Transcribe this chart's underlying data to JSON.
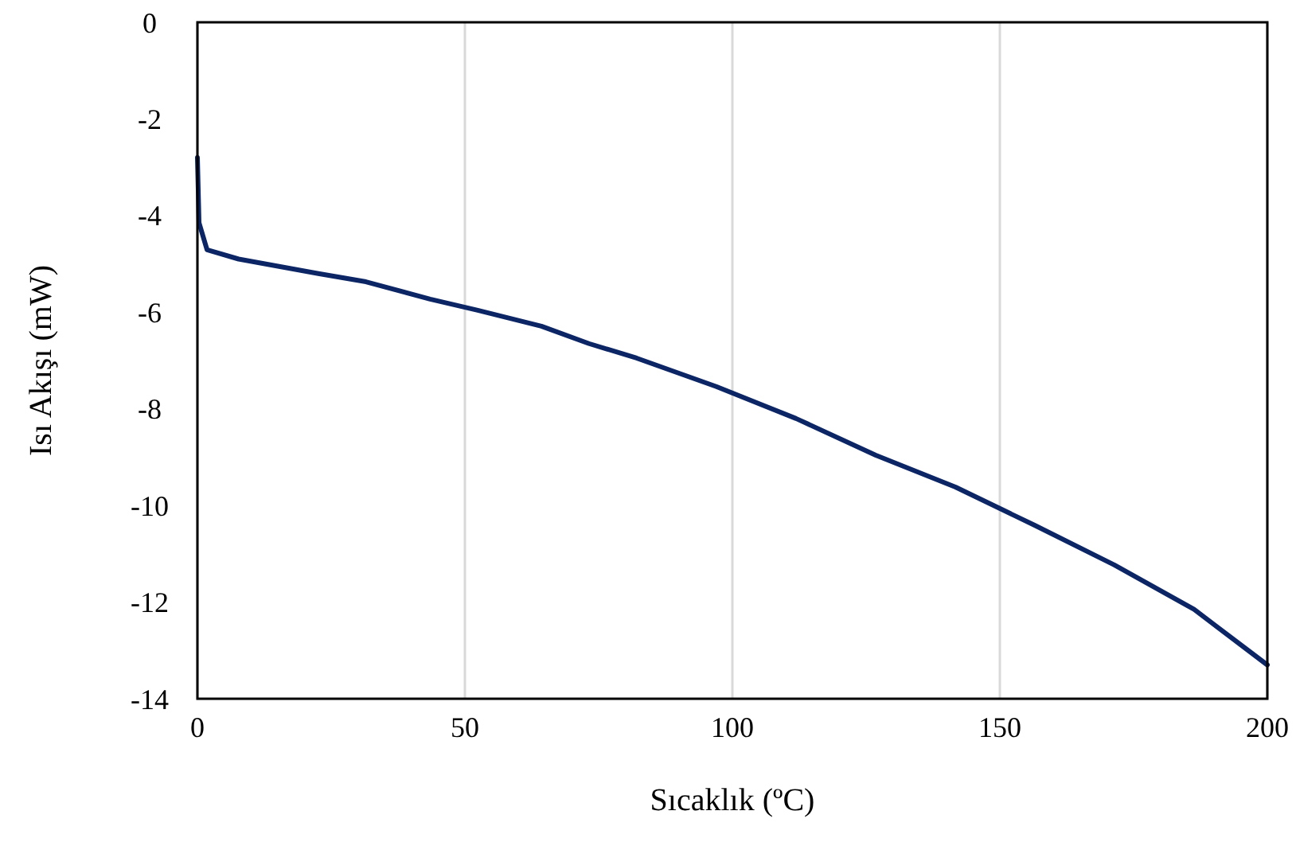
{
  "chart_data": {
    "type": "line",
    "xlabel": "Sıcaklık (ºC)",
    "ylabel": "Isı Akışı (mW)",
    "xlim": [
      0,
      200
    ],
    "ylim": [
      -14,
      0
    ],
    "xticks": [
      0,
      50,
      100,
      150,
      200
    ],
    "yticks": [
      0,
      -2,
      -4,
      -6,
      -8,
      -10,
      -12,
      -14
    ],
    "grid": "x",
    "marker": "none",
    "line_style": "solid",
    "series": [
      {
        "color": "#0b2565",
        "x": [
          0,
          0.3,
          1.8,
          7.7,
          22.6,
          31.5,
          43.5,
          52.4,
          64.3,
          73.2,
          82.1,
          97,
          111.9,
          126.8,
          141.7,
          156.5,
          171.4,
          186.3,
          200
        ],
        "values": [
          -2.8,
          -4.15,
          -4.71,
          -4.9,
          -5.2,
          -5.37,
          -5.73,
          -5.96,
          -6.29,
          -6.65,
          -6.95,
          -7.54,
          -8.2,
          -8.96,
          -9.62,
          -10.41,
          -11.23,
          -12.15,
          -13.3
        ]
      }
    ]
  }
}
